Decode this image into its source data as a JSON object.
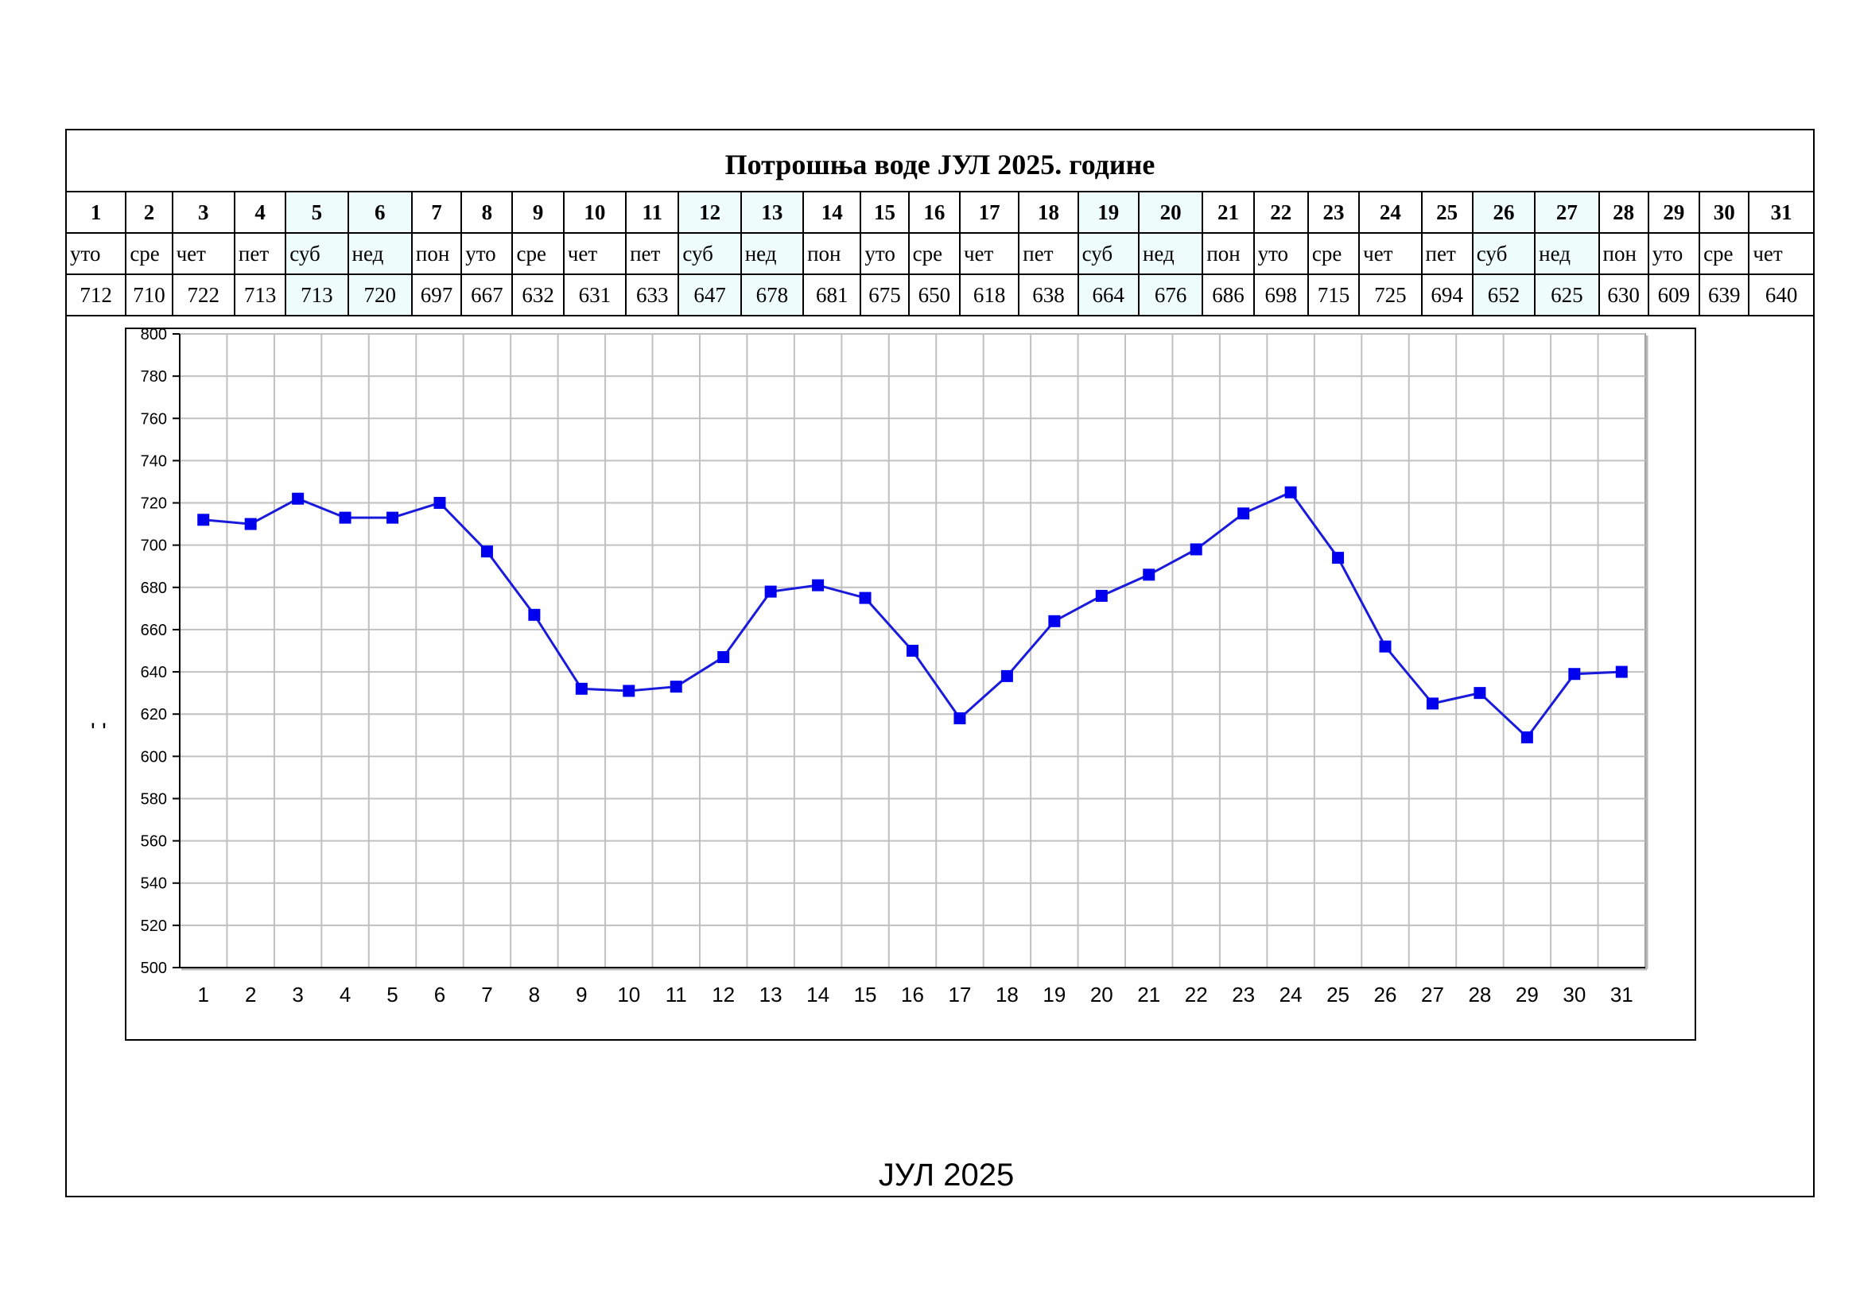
{
  "title": "Потрошња воде ЈУЛ 2025. године",
  "bottom_label": "ЈУЛ 2025",
  "y_axis_label": "' '",
  "colors": {
    "line": "#1a1adc",
    "marker": "#0000ee",
    "weekend_cell": "#eefcfc",
    "grid": "#c0c0c0"
  },
  "table": {
    "days": [
      "1",
      "2",
      "3",
      "4",
      "5",
      "6",
      "7",
      "8",
      "9",
      "10",
      "11",
      "12",
      "13",
      "14",
      "15",
      "16",
      "17",
      "18",
      "19",
      "20",
      "21",
      "22",
      "23",
      "24",
      "25",
      "26",
      "27",
      "28",
      "29",
      "30",
      "31"
    ],
    "weekdays": [
      "уто",
      "сре",
      "чет",
      "пет",
      "суб",
      "нед",
      "пон",
      "уто",
      "сре",
      "чет",
      "пет",
      "суб",
      "нед",
      "пон",
      "уто",
      "сре",
      "чет",
      "пет",
      "суб",
      "нед",
      "пон",
      "уто",
      "сре",
      "чет",
      "пет",
      "суб",
      "нед",
      "пон",
      "уто",
      "сре",
      "чет"
    ],
    "values": [
      "712",
      "710",
      "722",
      "713",
      "713",
      "720",
      "697",
      "667",
      "632",
      "631",
      "633",
      "647",
      "678",
      "681",
      "675",
      "650",
      "618",
      "638",
      "664",
      "676",
      "686",
      "698",
      "715",
      "725",
      "694",
      "652",
      "625",
      "630",
      "609",
      "639",
      "640"
    ]
  },
  "chart_data": {
    "type": "line",
    "title": "",
    "xlabel": "",
    "ylabel": "",
    "categories": [
      "1",
      "2",
      "3",
      "4",
      "5",
      "6",
      "7",
      "8",
      "9",
      "10",
      "11",
      "12",
      "13",
      "14",
      "15",
      "16",
      "17",
      "18",
      "19",
      "20",
      "21",
      "22",
      "23",
      "24",
      "25",
      "26",
      "27",
      "28",
      "29",
      "30",
      "31"
    ],
    "series": [
      {
        "values": [
          712,
          710,
          722,
          713,
          713,
          720,
          697,
          667,
          632,
          631,
          633,
          647,
          678,
          681,
          675,
          650,
          618,
          638,
          664,
          676,
          686,
          698,
          715,
          725,
          694,
          652,
          625,
          630,
          609,
          639,
          640
        ]
      }
    ],
    "ylim": [
      500,
      800
    ],
    "yticks": [
      500,
      520,
      540,
      560,
      580,
      600,
      620,
      640,
      660,
      680,
      700,
      720,
      740,
      760,
      780,
      800
    ],
    "grid": true,
    "legend": "none",
    "marker": "square"
  }
}
